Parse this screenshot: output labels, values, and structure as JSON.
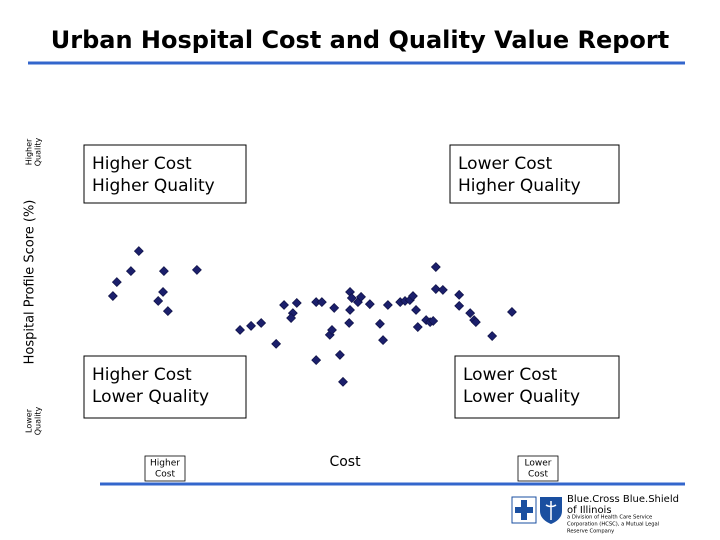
{
  "chart_data": {
    "type": "scatter",
    "title": "Urban Hospital Cost and Quality Value Report",
    "y_label": "Hospital Profile Score (%)",
    "x_label": "Cost",
    "y_high_label": [
      "Higher",
      "Quality"
    ],
    "y_low_label": [
      "Lower",
      "Quality"
    ],
    "x_left_label": [
      "Higher",
      "Cost"
    ],
    "x_right_label": [
      "Lower",
      "Cost"
    ],
    "quadrants": [
      [
        "Higher Cost",
        "Higher Quality"
      ],
      [
        "Lower Cost",
        "Higher Quality"
      ],
      [
        "Higher Cost",
        "Lower Quality"
      ],
      [
        "Lower Cost",
        "Lower Quality"
      ]
    ],
    "color": "#1b1f6b",
    "xlim": [
      0,
      100
    ],
    "ylim": [
      0,
      100
    ],
    "x": [
      11.1,
      6.1,
      9.3,
      16.8,
      24.3,
      5.2,
      16.6,
      15.5,
      17.7,
      34.1,
      36.6,
      38.9,
      44.1,
      47.0,
      46.1,
      45.7,
      51.4,
      52.7,
      42.3,
      51.4,
      54.5,
      55.5,
      59.1,
      59.5,
      60.9,
      61.6,
      59.1,
      58.9,
      55.0,
      56.8,
      57.5,
      63.6,
      65.9,
      66.6,
      67.7,
      70.5,
      71.6,
      72.7,
      73.4,
      74.1,
      74.5,
      76.4,
      77.3,
      78.0,
      78.6,
      78.6,
      80.2,
      83.9,
      83.9,
      86.4,
      87.3,
      87.7,
      91.4,
      95.9
    ],
    "values": [
      61.7,
      51.0,
      54.8,
      54.8,
      55.2,
      46.2,
      47.6,
      44.5,
      41.0,
      34.5,
      35.9,
      36.9,
      43.1,
      43.8,
      40.3,
      38.6,
      44.1,
      44.1,
      29.7,
      24.1,
      32.8,
      42.1,
      47.6,
      45.5,
      44.1,
      45.9,
      41.4,
      36.9,
      34.5,
      25.9,
      16.6,
      43.4,
      36.6,
      31.0,
      43.1,
      44.1,
      44.5,
      44.8,
      46.2,
      41.4,
      35.5,
      37.9,
      37.2,
      37.6,
      56.2,
      48.6,
      48.3,
      42.8,
      46.6,
      40.3,
      37.9,
      37.2,
      32.4,
      40.7
    ],
    "logo": {
      "name": [
        "Blue.Cross Blue.Shield",
        "of Illinois"
      ],
      "fine_print": [
        "a Division of Health Care Service",
        "Corporation (HCSC), a Mutual Legal",
        "Reserve Company"
      ]
    }
  }
}
